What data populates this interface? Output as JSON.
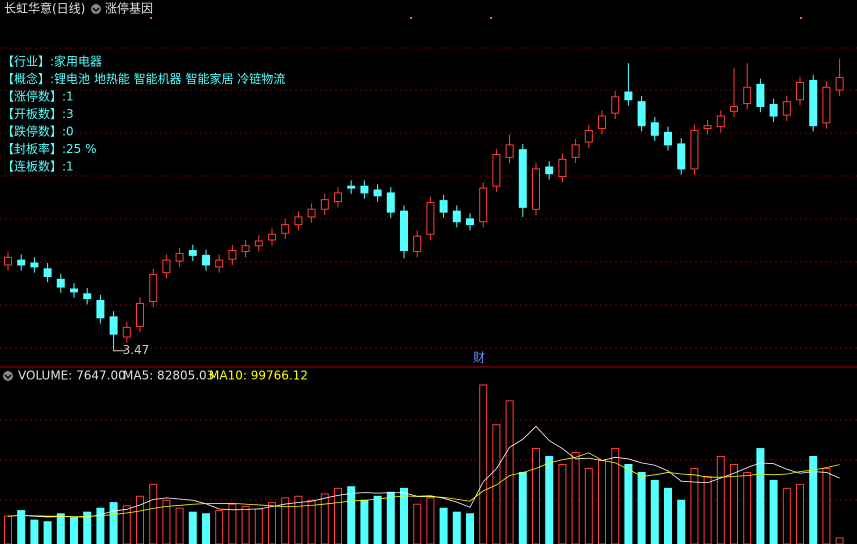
{
  "chart_data": {
    "type": "candlestick",
    "title": "长虹华意(日线)",
    "subtitle": "涨停基因",
    "info": [
      "【行业】:家用电器",
      "【概念】:锂电池 地热能 智能机器 智能家居 冷链物流",
      "【涨停数】:1",
      "【开板数】:3",
      "【跌停数】:0",
      "【封板率】:25 %",
      "【连板数】:1"
    ],
    "event_label": "财",
    "low_annotation": "3.47",
    "up_color": "#ff3c3c",
    "down_color": "#54ffff",
    "ylim": [
      3.29,
      6.85
    ],
    "open": [
      4.3,
      4.35,
      4.32,
      4.26,
      4.15,
      4.05,
      4.0,
      3.93,
      3.76,
      3.55,
      3.66,
      3.92,
      4.22,
      4.34,
      4.45,
      4.4,
      4.28,
      4.36,
      4.44,
      4.5,
      4.56,
      4.63,
      4.72,
      4.8,
      4.88,
      4.96,
      5.12,
      5.12,
      5.08,
      5.05,
      4.86,
      4.44,
      4.62,
      4.97,
      4.86,
      4.78,
      4.75,
      5.12,
      5.42,
      5.5,
      4.88,
      5.32,
      5.22,
      5.42,
      5.58,
      5.72,
      5.88,
      6.1,
      6.0,
      5.78,
      5.68,
      5.56,
      5.3,
      5.72,
      5.74,
      5.9,
      5.98,
      6.18,
      5.97,
      5.86,
      6.02,
      6.22,
      5.78,
      6.12
    ],
    "high": [
      4.44,
      4.41,
      4.38,
      4.32,
      4.21,
      4.11,
      4.06,
      3.99,
      3.82,
      3.71,
      3.96,
      4.26,
      4.41,
      4.48,
      4.51,
      4.46,
      4.41,
      4.51,
      4.56,
      4.61,
      4.68,
      4.78,
      4.86,
      4.94,
      5.04,
      5.11,
      5.18,
      5.18,
      5.14,
      5.11,
      4.92,
      4.66,
      5.01,
      5.03,
      4.92,
      4.84,
      5.16,
      5.51,
      5.66,
      5.56,
      5.36,
      5.38,
      5.46,
      5.61,
      5.76,
      5.91,
      6.11,
      6.4,
      6.06,
      5.84,
      5.74,
      5.62,
      5.76,
      5.81,
      5.91,
      6.35,
      6.4,
      6.24,
      6.03,
      6.06,
      6.26,
      6.28,
      6.21,
      6.45
    ],
    "low": [
      4.24,
      4.24,
      4.22,
      4.12,
      4.01,
      3.96,
      3.89,
      3.69,
      3.47,
      3.49,
      3.6,
      3.86,
      4.16,
      4.28,
      4.34,
      4.24,
      4.22,
      4.3,
      4.38,
      4.44,
      4.5,
      4.57,
      4.66,
      4.74,
      4.82,
      4.9,
      5.04,
      4.99,
      4.96,
      4.79,
      4.37,
      4.38,
      4.56,
      4.79,
      4.69,
      4.66,
      4.69,
      5.06,
      5.36,
      4.8,
      4.82,
      5.19,
      5.16,
      5.36,
      5.52,
      5.66,
      5.82,
      5.96,
      5.69,
      5.59,
      5.49,
      5.24,
      5.24,
      5.66,
      5.68,
      5.84,
      5.92,
      5.89,
      5.79,
      5.8,
      5.96,
      5.69,
      5.72,
      6.06
    ],
    "close": [
      4.38,
      4.3,
      4.28,
      4.18,
      4.07,
      4.02,
      3.95,
      3.75,
      3.58,
      3.65,
      3.9,
      4.2,
      4.35,
      4.42,
      4.4,
      4.3,
      4.35,
      4.45,
      4.5,
      4.55,
      4.62,
      4.72,
      4.8,
      4.88,
      4.98,
      5.05,
      5.1,
      5.05,
      5.02,
      4.85,
      4.45,
      4.6,
      4.95,
      4.85,
      4.75,
      4.72,
      5.1,
      5.45,
      5.55,
      4.9,
      5.3,
      5.25,
      5.4,
      5.55,
      5.7,
      5.85,
      6.05,
      6.02,
      5.75,
      5.65,
      5.55,
      5.3,
      5.7,
      5.75,
      5.85,
      5.95,
      6.15,
      5.95,
      5.85,
      6.0,
      6.2,
      5.75,
      6.15,
      6.25
    ],
    "volume_header": "VOLUME: 7647.00",
    "ma5_header": "MA5: 82805.03",
    "ma10_header": "MA10: 99766.12",
    "volume_ylim": [
      0,
      210000
    ],
    "volume": [
      35000,
      42000,
      30000,
      28000,
      38000,
      33000,
      40000,
      45000,
      52000,
      48000,
      60000,
      75000,
      55000,
      45000,
      40000,
      38000,
      42000,
      50000,
      47000,
      44000,
      52000,
      58000,
      60000,
      55000,
      63000,
      70000,
      72000,
      55000,
      60000,
      65000,
      70000,
      50000,
      58000,
      45000,
      40000,
      38000,
      200000,
      150000,
      180000,
      90000,
      120000,
      110000,
      100000,
      115000,
      95000,
      105000,
      120000,
      100000,
      90000,
      80000,
      70000,
      55000,
      95000,
      85000,
      110000,
      100000,
      90000,
      120000,
      80000,
      70000,
      75000,
      110000,
      95000,
      7647
    ],
    "ma_series": [
      {
        "name": "MA5",
        "color": "#ffffff",
        "values": [
          35000,
          36000,
          35000,
          34000,
          34600,
          34200,
          33800,
          36800,
          41600,
          43600,
          49000,
          56000,
          58000,
          56600,
          55000,
          50600,
          44000,
          43000,
          43400,
          44200,
          47000,
          50200,
          52200,
          53800,
          57600,
          61200,
          63600,
          64600,
          64000,
          64400,
          64400,
          60000,
          60600,
          57600,
          52600,
          46200,
          78200,
          94600,
          121600,
          131600,
          148000,
          130000,
          120000,
          107000,
          108000,
          105000,
          109000,
          107000,
          102000,
          99000,
          92000,
          79000,
          78000,
          77000,
          83000,
          89000,
          96000,
          102000,
          101000,
          94000,
          89000,
          91000,
          90000,
          82805.03
        ]
      },
      {
        "name": "MA10",
        "color": "#ffff00",
        "values": [
          35000,
          36000,
          35500,
          35000,
          35000,
          34300,
          34700,
          35500,
          37000,
          39000,
          41500,
          44800,
          47300,
          48500,
          50000,
          50800,
          51000,
          51000,
          50100,
          49100,
          48000,
          47000,
          47500,
          48600,
          50200,
          52000,
          54000,
          55000,
          56400,
          58700,
          60500,
          59700,
          59500,
          58600,
          56300,
          53800,
          66800,
          74300,
          86100,
          89700,
          95100,
          101800,
          106000,
          109000,
          114700,
          105200,
          102000,
          94000,
          85000,
          87000,
          90000,
          88000,
          87000,
          84000,
          84000,
          85000,
          86000,
          88000,
          87000,
          88000,
          91000,
          93000,
          96000,
          99766.12
        ]
      }
    ]
  }
}
